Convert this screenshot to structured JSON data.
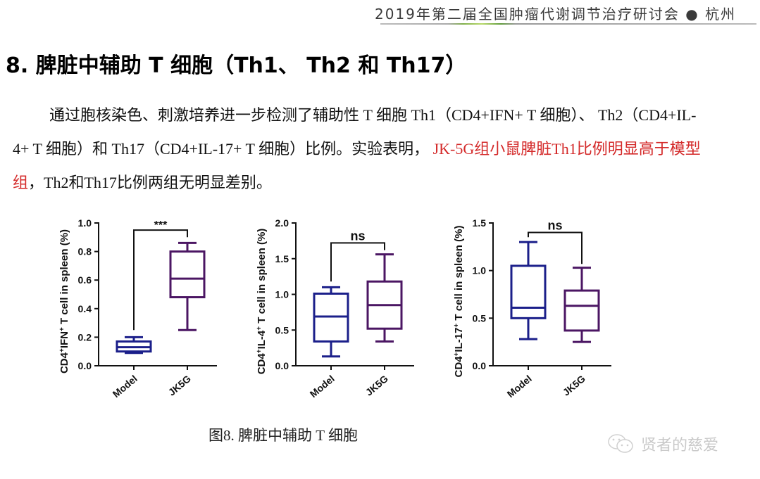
{
  "header": {
    "conference": "2019年第二届全国肿瘤代谢调节治疗研讨会 ● 杭州"
  },
  "title": "8.  脾脏中辅助 T 细胞（Th1、 Th2 和 Th17）",
  "paragraph": {
    "part1": "通过胞核染色、刺激培养进一步检测了辅助性 T 细胞 Th1（CD4+IFN+ T 细胞）、 Th2（CD4+IL-4+ T 细胞）和 Th17（CD4+IL-17+ T 细胞）比例。实验表明，",
    "red": " JK-5G组小鼠脾脏Th1比例明显高于模型组",
    "part2": "，Th2和Th17比例两组无明显差别。"
  },
  "caption": "图8.  脾脏中辅助 T 细胞",
  "watermark": {
    "icon": "wechat-icon",
    "text": "贤者的慈爱"
  },
  "colors": {
    "model": "#1b1f8a",
    "jk5g": "#4b1663",
    "highlight": "#d42a2a"
  },
  "chart_data": [
    {
      "type": "box",
      "ylabel": "CD4+IFN+ T cell in spleen (%)",
      "ylabel_html": [
        "CD4",
        "+",
        "IFN",
        "+",
        " T cell in spleen (%)"
      ],
      "categories": [
        "Model",
        "JK5G"
      ],
      "ylim": [
        0,
        1.0
      ],
      "yticks": [
        "0.0",
        "0.2",
        "0.4",
        "0.6",
        "0.8",
        "1.0"
      ],
      "ytick_values": [
        0,
        0.2,
        0.4,
        0.6,
        0.8,
        1.0
      ],
      "series": [
        {
          "name": "Model",
          "min": 0.09,
          "q1": 0.1,
          "median": 0.13,
          "q3": 0.17,
          "max": 0.2
        },
        {
          "name": "JK5G",
          "min": 0.25,
          "q1": 0.48,
          "median": 0.61,
          "q3": 0.8,
          "max": 0.86
        }
      ],
      "significance": "***",
      "bracket": {
        "left_y": 0.25,
        "top_y": 0.95,
        "right_y": 0.9
      }
    },
    {
      "type": "box",
      "ylabel": "CD4+IL-4+ T cell in spleen (%)",
      "ylabel_html": [
        "CD4",
        "+",
        "IL-4",
        "+",
        " T cell in spleen (%)"
      ],
      "categories": [
        "Model",
        "JK5G"
      ],
      "ylim": [
        0,
        2.0
      ],
      "yticks": [
        "0.0",
        "0.5",
        "1.0",
        "1.5",
        "2.0"
      ],
      "ytick_values": [
        0,
        0.5,
        1.0,
        1.5,
        2.0
      ],
      "series": [
        {
          "name": "Model",
          "min": 0.13,
          "q1": 0.34,
          "median": 0.69,
          "q3": 1.01,
          "max": 1.1
        },
        {
          "name": "JK5G",
          "min": 0.34,
          "q1": 0.52,
          "median": 0.85,
          "q3": 1.18,
          "max": 1.56
        }
      ],
      "significance": "ns",
      "bracket": {
        "left_y": 1.18,
        "top_y": 1.72,
        "right_y": 1.62
      }
    },
    {
      "type": "box",
      "ylabel": "CD4+IL-17+ T cell in spleen (%)",
      "ylabel_html": [
        "CD4",
        "+",
        "IL-17",
        "+",
        " T cell in spleen (%)"
      ],
      "categories": [
        "Model",
        "JK5G"
      ],
      "ylim": [
        0,
        1.5
      ],
      "yticks": [
        "0.0",
        "0.5",
        "1.0",
        "1.5"
      ],
      "ytick_values": [
        0,
        0.5,
        1.0,
        1.5
      ],
      "series": [
        {
          "name": "Model",
          "min": 0.28,
          "q1": 0.5,
          "median": 0.61,
          "q3": 1.05,
          "max": 1.3
        },
        {
          "name": "JK5G",
          "min": 0.25,
          "q1": 0.37,
          "median": 0.63,
          "q3": 0.79,
          "max": 1.03
        }
      ],
      "significance": "ns",
      "bracket": {
        "left_y": 1.35,
        "top_y": 1.4,
        "right_y": 1.07
      }
    }
  ]
}
